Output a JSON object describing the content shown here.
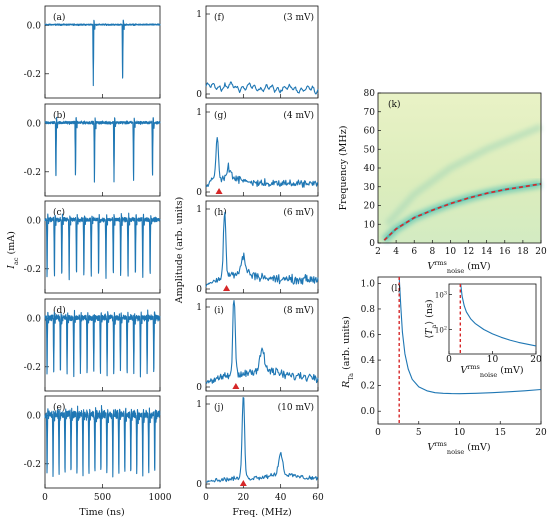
{
  "colors": {
    "trace": "#1f77b4",
    "marker": "#d62728",
    "heat_low": "#fbf7cf",
    "heat_high": "#2aa8a8"
  },
  "chart_data": [
    {
      "type": "line",
      "panel": "time-traces",
      "xlabel": "Time (ns)",
      "ylabel": "I_ac (mA)",
      "xlim": [
        0,
        1000
      ],
      "ylim": [
        -0.3,
        0.08
      ],
      "x_ticks": [
        "0",
        "500",
        "1000"
      ],
      "y_ticks": [
        "0.0",
        "-0.2"
      ],
      "subplots": [
        {
          "label": "(a)",
          "spike_count": 2,
          "spike_times_ns": [
            420,
            675
          ],
          "spike_depth": -0.24,
          "noise": 0.004
        },
        {
          "label": "(b)",
          "spike_count": 6,
          "spike_times_ns": [
            95,
            265,
            430,
            600,
            770,
            935
          ],
          "spike_depth": -0.24,
          "noise": 0.008
        },
        {
          "label": "(c)",
          "spike_count": 15,
          "spike_period_ns": 64,
          "spike_depth": -0.24,
          "noise": 0.012
        },
        {
          "label": "(d)",
          "spike_count": 17,
          "spike_period_ns": 58,
          "spike_depth": -0.24,
          "noise": 0.018
        },
        {
          "label": "(e)",
          "spike_count": 19,
          "spike_period_ns": 52,
          "spike_depth": -0.25,
          "noise": 0.025
        }
      ]
    },
    {
      "type": "line",
      "panel": "spectra",
      "xlabel": "Freq. (MHz)",
      "ylabel": "Amplitude (arb. units)",
      "xlim": [
        0,
        60
      ],
      "ylim": [
        -0.05,
        1.1
      ],
      "x_ticks": [
        "0",
        "20",
        "40",
        "60"
      ],
      "y_ticks": [
        "0",
        "1"
      ],
      "subplots": [
        {
          "label": "(f)",
          "condition": "(3 mV)",
          "peak_mhz": null,
          "peak_amp": 0.0,
          "floor": 0.1,
          "marker_mhz": null
        },
        {
          "label": "(g)",
          "condition": "(4 mV)",
          "peak_mhz": 6,
          "peak_amp": 0.55,
          "floor": 0.18,
          "marker_mhz": 7
        },
        {
          "label": "(h)",
          "condition": "(6 mV)",
          "peak_mhz": 10,
          "peak_amp": 0.82,
          "floor": 0.2,
          "marker_mhz": 11
        },
        {
          "label": "(i)",
          "condition": "(8 mV)",
          "peak_mhz": 15,
          "peak_amp": 1.02,
          "floor": 0.22,
          "marker_mhz": 16
        },
        {
          "label": "(j)",
          "condition": "(10 mV)",
          "peak_mhz": 20,
          "peak_amp": 1.08,
          "floor": 0.12,
          "marker_mhz": 20
        }
      ]
    },
    {
      "type": "heatmap",
      "panel": "(k)",
      "label": "(k)",
      "xlabel": "V_noise^rms (mV)",
      "ylabel": "Frequency (MHz)",
      "xlim": [
        2,
        20
      ],
      "ylim": [
        0,
        80
      ],
      "x_ticks": [
        "2",
        "4",
        "6",
        "8",
        "10",
        "12",
        "14",
        "16",
        "18",
        "20"
      ],
      "y_ticks": [
        "0",
        "10",
        "20",
        "30",
        "40",
        "50",
        "60",
        "70",
        "80"
      ],
      "fit_curve": {
        "x": [
          2.7,
          4,
          6,
          8,
          10,
          12,
          14,
          16,
          18,
          20
        ],
        "y": [
          1.5,
          7.5,
          13.5,
          17.5,
          21,
          24,
          26.5,
          28.5,
          30,
          31.5
        ]
      },
      "harmonic_band": {
        "x": [
          3,
          6,
          10,
          14,
          20
        ],
        "y": [
          10,
          26,
          40,
          50,
          62
        ]
      }
    },
    {
      "type": "line",
      "panel": "(l)",
      "label": "(l)",
      "xlabel": "V_noise^rms (mV)",
      "ylabel": "R_Ta (arb. units)",
      "xlim": [
        0,
        20
      ],
      "ylim": [
        -0.1,
        1.05
      ],
      "x_ticks": [
        "0",
        "5",
        "10",
        "15",
        "20"
      ],
      "y_ticks": [
        "0.0",
        "0.2",
        "0.4",
        "0.6",
        "0.8",
        "1.0"
      ],
      "x": [
        2.6,
        2.8,
        3.0,
        3.3,
        3.7,
        4.2,
        5,
        6,
        7,
        8,
        9,
        10,
        12,
        14,
        16,
        18,
        20
      ],
      "y": [
        1.05,
        0.82,
        0.62,
        0.45,
        0.33,
        0.25,
        0.19,
        0.16,
        0.145,
        0.14,
        0.138,
        0.137,
        0.14,
        0.145,
        0.152,
        0.16,
        0.17
      ],
      "threshold_x": 2.6,
      "inset": {
        "xlabel": "V_noise^rms (mV)",
        "ylabel": "<T_a> (ns)",
        "xlim": [
          0,
          20
        ],
        "ylog": true,
        "ylim": [
          20,
          2000
        ],
        "x_ticks": [
          "0",
          "10",
          "20"
        ],
        "y_ticks": [
          "10^2",
          "10^3"
        ],
        "x": [
          2.7,
          3.0,
          3.5,
          4,
          5,
          6,
          8,
          10,
          12,
          14,
          16,
          18,
          20
        ],
        "y": [
          2000,
          900,
          480,
          320,
          200,
          150,
          100,
          75,
          60,
          50,
          43,
          38,
          34
        ],
        "threshold_x": 2.6
      }
    }
  ]
}
